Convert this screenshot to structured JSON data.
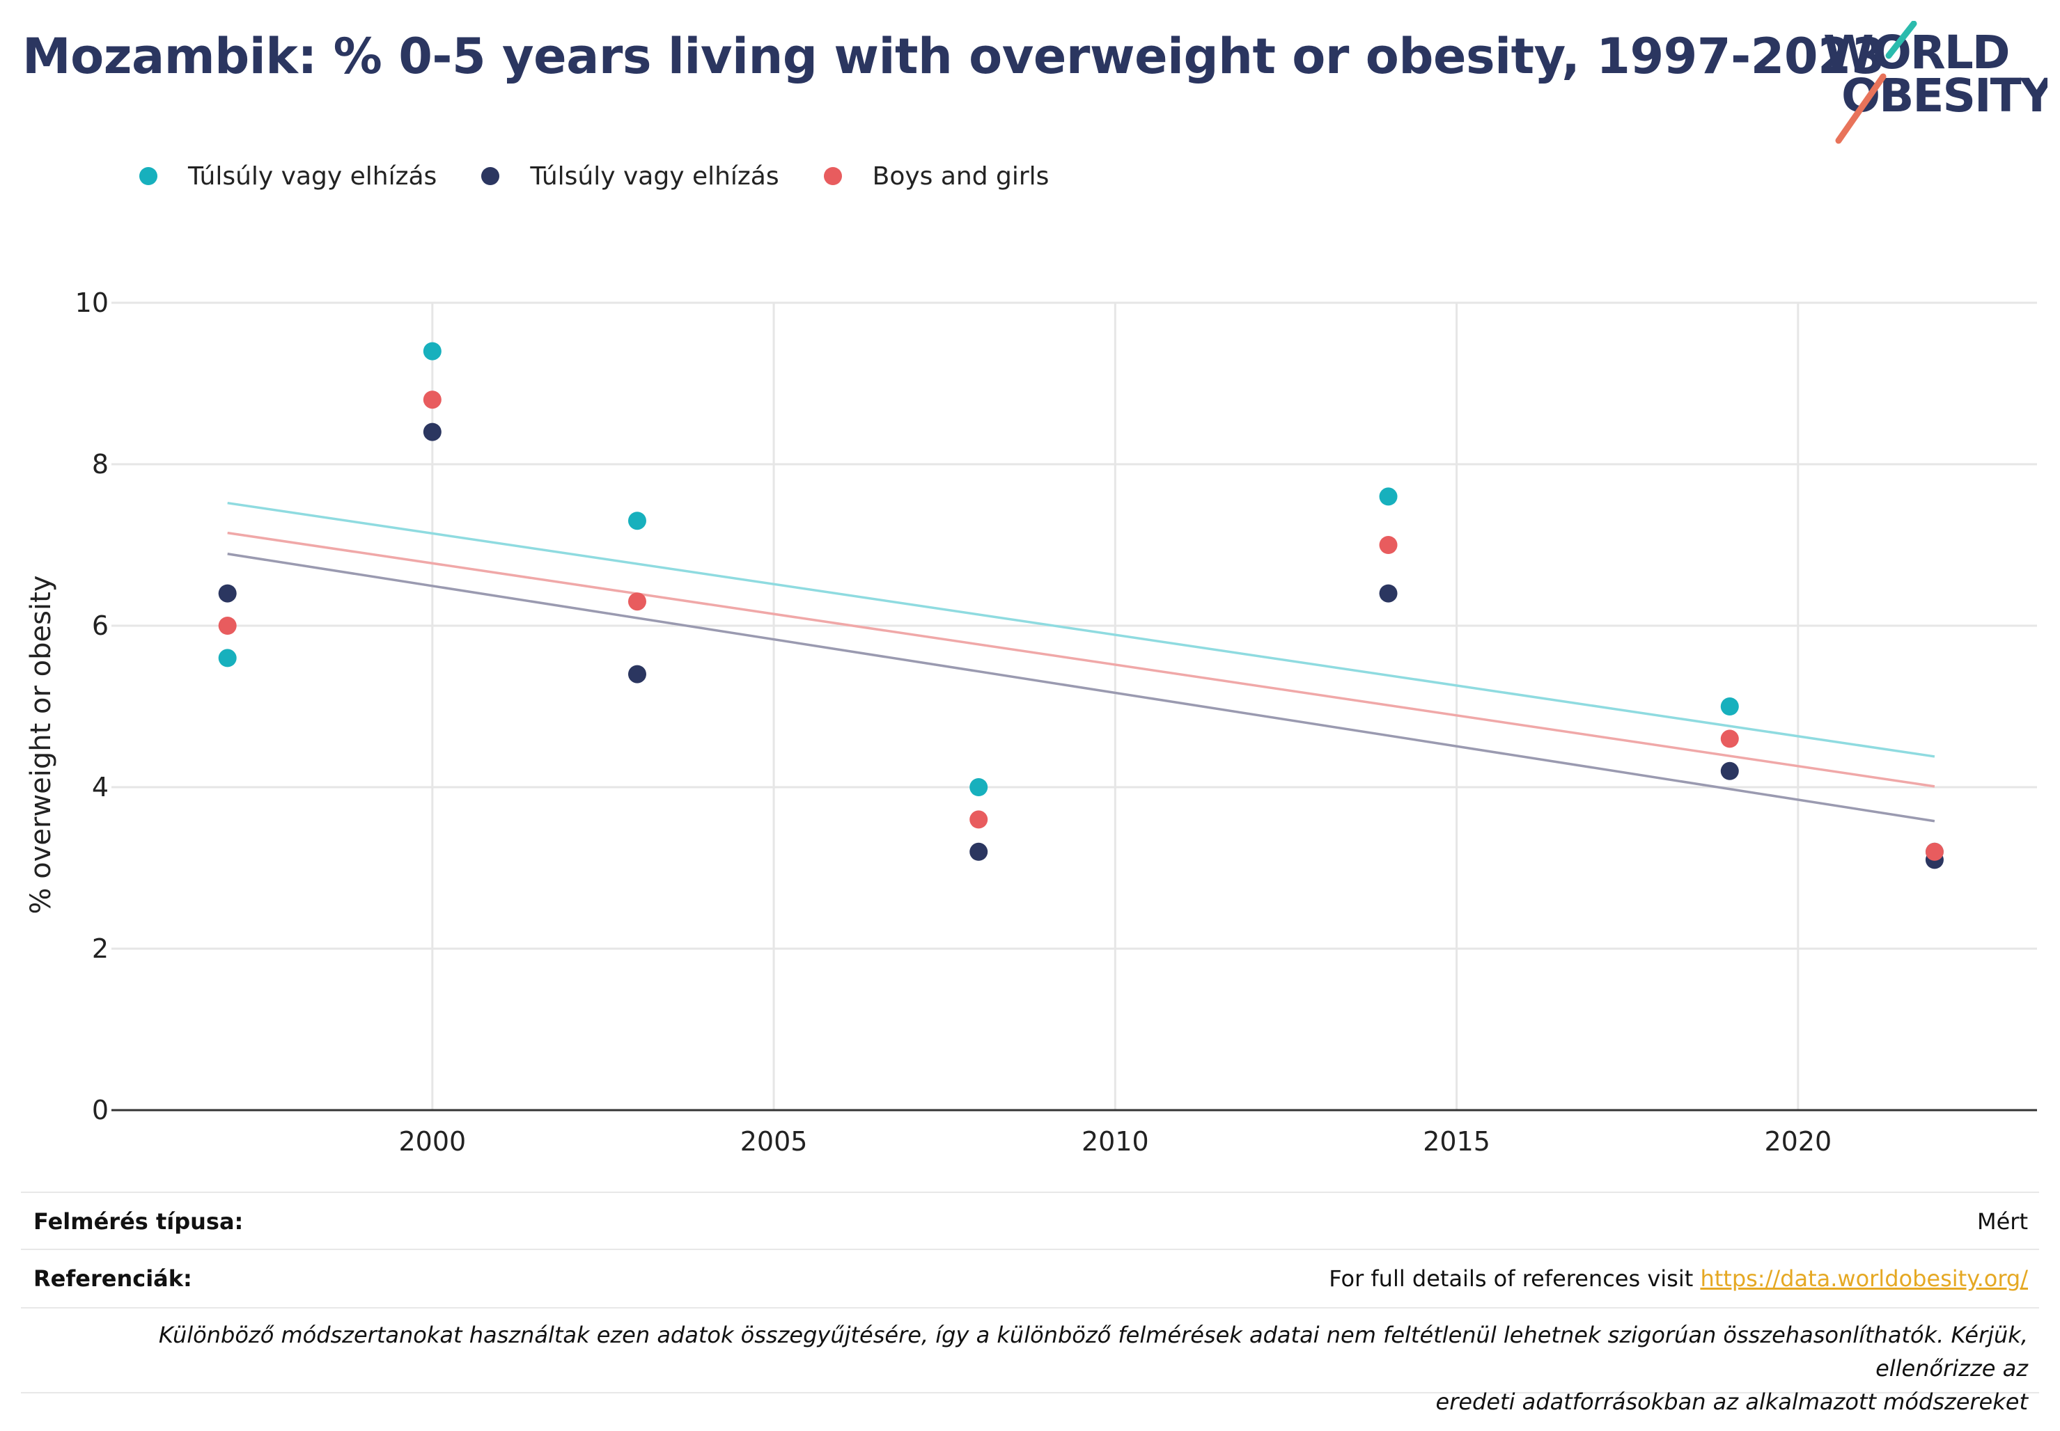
{
  "header": {
    "title": "Mozambik: % 0-5 years living with overweight or obesity, 1997-2023"
  },
  "logo": {
    "line1": "WORLD",
    "line2": "OBESITY",
    "colors": {
      "text": "#2b3660",
      "slash_teal": "#2bbbad",
      "slash_coral": "#e8735a"
    }
  },
  "chart_data": {
    "type": "scatter",
    "title": "",
    "xlabel": "",
    "ylabel": "% overweight or obesity",
    "xlim": [
      1995.3,
      2023.5
    ],
    "ylim": [
      0,
      10
    ],
    "x_ticks": [
      2000,
      2005,
      2010,
      2015,
      2020
    ],
    "y_ticks": [
      0,
      2,
      4,
      6,
      8,
      10
    ],
    "grid": true,
    "legend_position": "top-left",
    "series": [
      {
        "name": "Túlsúly vagy elhízás",
        "color": "#17b0bd",
        "x": [
          1997,
          2000,
          2003,
          2008,
          2014,
          2019,
          2022
        ],
        "values": [
          5.6,
          9.4,
          7.3,
          4.0,
          7.6,
          5.0,
          3.2
        ],
        "trend": {
          "x": [
            1997,
            2022
          ],
          "y": [
            7.52,
            4.38
          ]
        }
      },
      {
        "name": "Túlsúly vagy elhízás",
        "color": "#2b3660",
        "x": [
          1997,
          2000,
          2003,
          2008,
          2014,
          2019,
          2022
        ],
        "values": [
          6.4,
          8.4,
          5.4,
          3.2,
          6.4,
          4.2,
          3.1
        ],
        "trend": {
          "x": [
            1997,
            2022
          ],
          "y": [
            6.89,
            3.58
          ]
        }
      },
      {
        "name": "Boys and girls",
        "color": "#e85c5e",
        "x": [
          1997,
          2000,
          2003,
          2008,
          2014,
          2019,
          2022
        ],
        "values": [
          6.0,
          8.8,
          6.3,
          3.6,
          7.0,
          4.6,
          3.2
        ],
        "trend": {
          "x": [
            1997,
            2022
          ],
          "y": [
            7.15,
            4.01
          ]
        }
      }
    ]
  },
  "footer": {
    "survey_label": "Felmérés típusa:",
    "survey_value": "Mért",
    "refs_label": "Referenciák:",
    "refs_text": "For full details of references visit ",
    "refs_link": "https://data.worldobesity.org/",
    "note_line1": "Különböző módszertanokat használtak ezen adatok összegyűjtésére, így a különböző felmérések adatai nem feltétlenül lehetnek szigorúan összehasonlíthatók. Kérjük, ellenőrizze az",
    "note_line2": "eredeti adatforrásokban az alkalmazott módszereket"
  }
}
